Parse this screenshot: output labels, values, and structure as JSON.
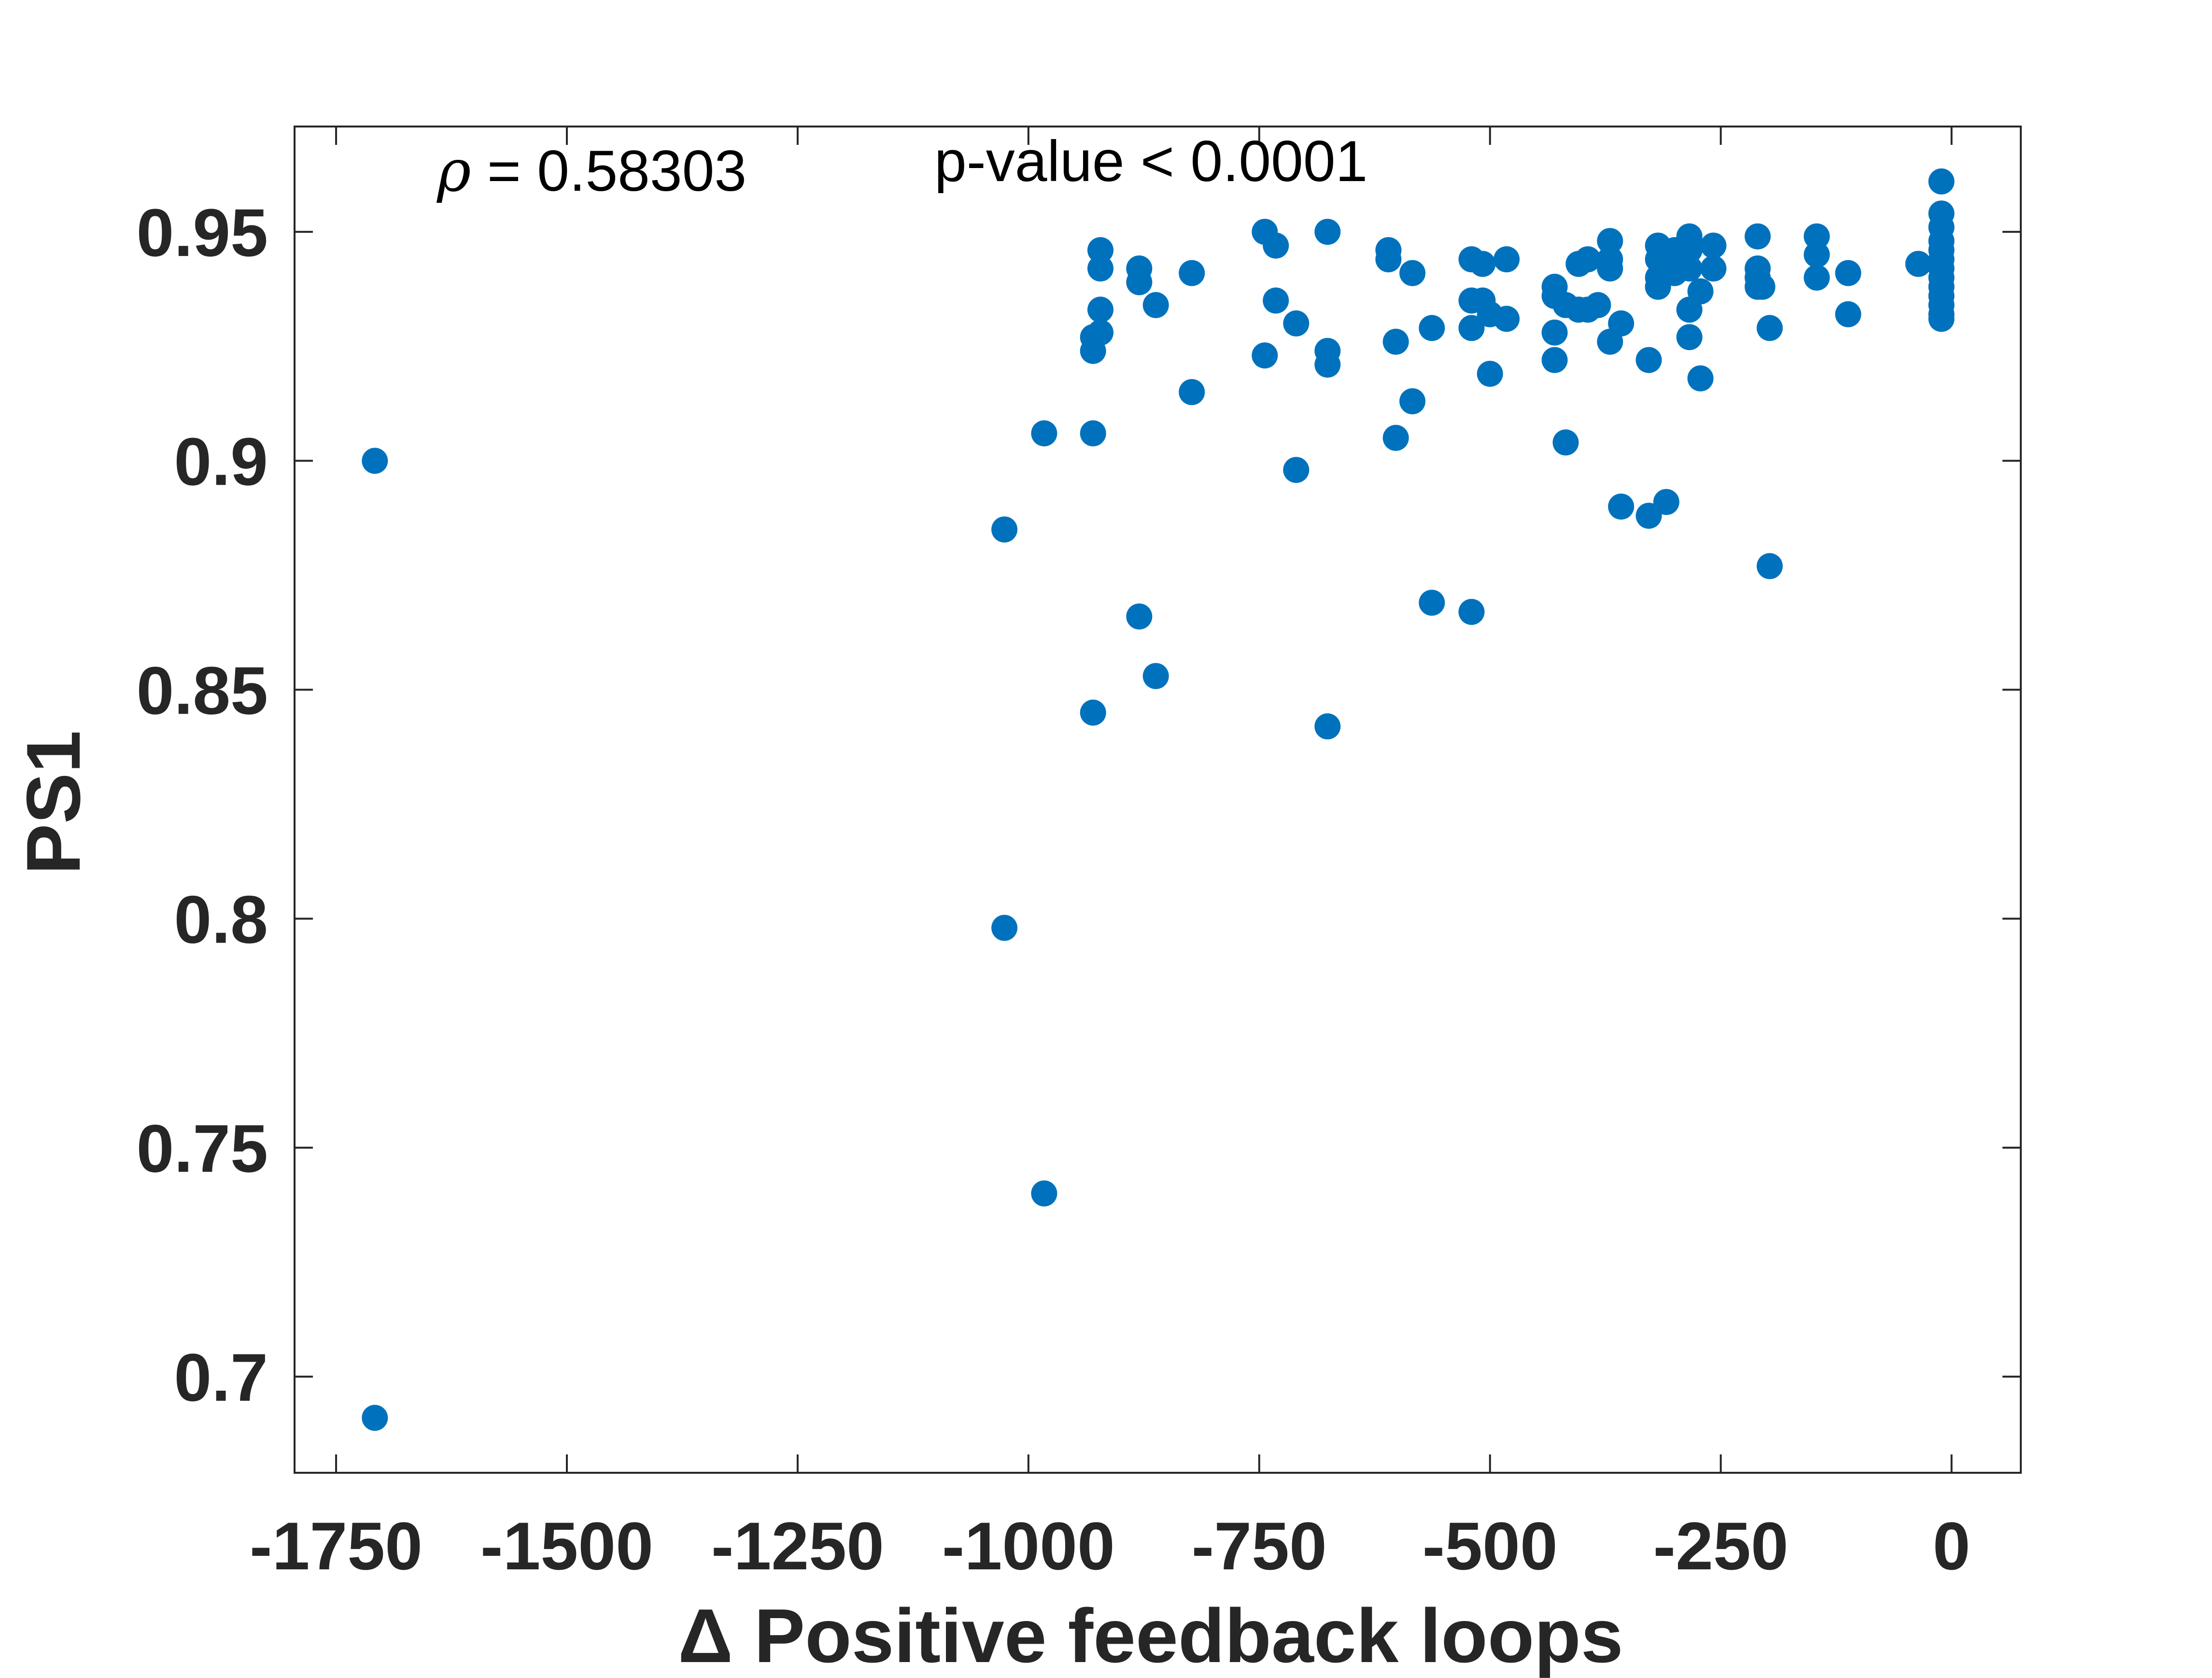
{
  "chart_data": {
    "type": "scatter",
    "xlabel": "Δ Positive feedback loops",
    "ylabel": "PS1",
    "xlim": [
      -1795,
      75
    ],
    "ylim": [
      0.679,
      0.973
    ],
    "xticks": [
      -1750,
      -1500,
      -1250,
      -1000,
      -750,
      -500,
      -250,
      0
    ],
    "xtick_labels": [
      "-1750",
      "-1500",
      "-1250",
      "-1000",
      "-750",
      "-500",
      "-250",
      "0"
    ],
    "yticks": [
      0.7,
      0.75,
      0.8,
      0.85,
      0.9,
      0.95
    ],
    "ytick_labels": [
      "0.7",
      "0.75",
      "0.8",
      "0.85",
      "0.9",
      "0.95"
    ],
    "annotations": {
      "rho_symbol": "ρ",
      "rho_text": " = 0.58303",
      "pvalue_text": "p-value < 0.0001"
    },
    "grid": false,
    "marker_color": "#0072BD",
    "axis_color": "#262626",
    "series": [
      {
        "points": [
          [
            -1708,
            0.9
          ],
          [
            -1708,
            0.691
          ],
          [
            -1026,
            0.885
          ],
          [
            -1026,
            0.798
          ],
          [
            -983,
            0.906
          ],
          [
            -983,
            0.74
          ],
          [
            -930,
            0.906
          ],
          [
            -930,
            0.845
          ],
          [
            -930,
            0.924
          ],
          [
            -930,
            0.927
          ],
          [
            -922,
            0.946
          ],
          [
            -922,
            0.942
          ],
          [
            -922,
            0.933
          ],
          [
            -922,
            0.928
          ],
          [
            -880,
            0.942
          ],
          [
            -880,
            0.939
          ],
          [
            -880,
            0.866
          ],
          [
            -862,
            0.934
          ],
          [
            -862,
            0.853
          ],
          [
            -823,
            0.941
          ],
          [
            -823,
            0.915
          ],
          [
            -744,
            0.95
          ],
          [
            -744,
            0.923
          ],
          [
            -732,
            0.947
          ],
          [
            -732,
            0.935
          ],
          [
            -710,
            0.93
          ],
          [
            -710,
            0.898
          ],
          [
            -676,
            0.95
          ],
          [
            -676,
            0.924
          ],
          [
            -676,
            0.921
          ],
          [
            -676,
            0.842
          ],
          [
            -610,
            0.946
          ],
          [
            -610,
            0.944
          ],
          [
            -602,
            0.926
          ],
          [
            -602,
            0.905
          ],
          [
            -584,
            0.941
          ],
          [
            -584,
            0.913
          ],
          [
            -563,
            0.929
          ],
          [
            -563,
            0.869
          ],
          [
            -520,
            0.944
          ],
          [
            -520,
            0.935
          ],
          [
            -520,
            0.929
          ],
          [
            -520,
            0.867
          ],
          [
            -508,
            0.943
          ],
          [
            -508,
            0.935
          ],
          [
            -500,
            0.932
          ],
          [
            -500,
            0.919
          ],
          [
            -482,
            0.944
          ],
          [
            -482,
            0.931
          ],
          [
            -430,
            0.938
          ],
          [
            -430,
            0.936
          ],
          [
            -430,
            0.928
          ],
          [
            -430,
            0.922
          ],
          [
            -418,
            0.934
          ],
          [
            -418,
            0.904
          ],
          [
            -404,
            0.943
          ],
          [
            -404,
            0.933
          ],
          [
            -394,
            0.944
          ],
          [
            -394,
            0.933
          ],
          [
            -383,
            0.934
          ],
          [
            -370,
            0.948
          ],
          [
            -370,
            0.944
          ],
          [
            -370,
            0.942
          ],
          [
            -370,
            0.926
          ],
          [
            -358,
            0.93
          ],
          [
            -358,
            0.89
          ],
          [
            -328,
            0.922
          ],
          [
            -328,
            0.888
          ],
          [
            -318,
            0.947
          ],
          [
            -318,
            0.944
          ],
          [
            -318,
            0.94
          ],
          [
            -318,
            0.938
          ],
          [
            -309,
            0.891
          ],
          [
            -300,
            0.946
          ],
          [
            -300,
            0.943
          ],
          [
            -300,
            0.941
          ],
          [
            -284,
            0.949
          ],
          [
            -284,
            0.946
          ],
          [
            -284,
            0.942
          ],
          [
            -284,
            0.933
          ],
          [
            -284,
            0.927
          ],
          [
            -272,
            0.937
          ],
          [
            -272,
            0.918
          ],
          [
            -258,
            0.947
          ],
          [
            -258,
            0.942
          ],
          [
            -210,
            0.949
          ],
          [
            -210,
            0.942
          ],
          [
            -210,
            0.94
          ],
          [
            -210,
            0.938
          ],
          [
            -205,
            0.938
          ],
          [
            -197,
            0.929
          ],
          [
            -197,
            0.877
          ],
          [
            -146,
            0.949
          ],
          [
            -146,
            0.945
          ],
          [
            -146,
            0.94
          ],
          [
            -112,
            0.941
          ],
          [
            -112,
            0.932
          ],
          [
            -36,
            0.943
          ],
          [
            -11,
            0.961
          ],
          [
            -11,
            0.954
          ],
          [
            -11,
            0.951
          ],
          [
            -11,
            0.948
          ],
          [
            -11,
            0.946
          ],
          [
            -11,
            0.944
          ],
          [
            -11,
            0.942
          ],
          [
            -11,
            0.94
          ],
          [
            -11,
            0.938
          ],
          [
            -11,
            0.936
          ],
          [
            -11,
            0.934
          ],
          [
            -11,
            0.932
          ],
          [
            -11,
            0.931
          ]
        ]
      }
    ]
  }
}
